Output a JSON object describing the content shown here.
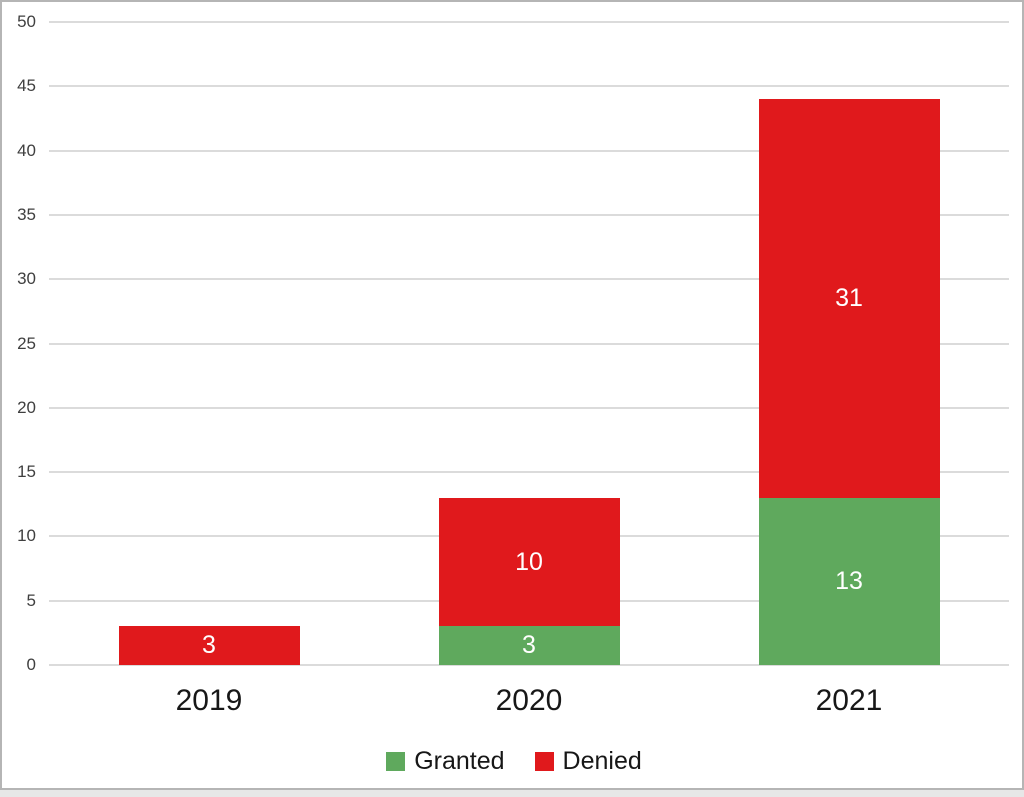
{
  "chart_data": {
    "type": "bar",
    "stacked": true,
    "title": "",
    "xlabel": "",
    "ylabel": "",
    "categories": [
      "2019",
      "2020",
      "2021"
    ],
    "series": [
      {
        "name": "Granted",
        "color": "#5FA95D",
        "values": [
          0,
          3,
          13
        ]
      },
      {
        "name": "Denied",
        "color": "#E0191C",
        "values": [
          3,
          10,
          31
        ]
      }
    ],
    "totals": [
      3,
      13,
      44
    ],
    "ylim": [
      0,
      50
    ],
    "yticks": [
      0,
      5,
      10,
      15,
      20,
      25,
      30,
      35,
      40,
      45,
      50
    ],
    "grid": true,
    "legend_position": "bottom",
    "bar_labels_shown": true,
    "bar_label_color": "#FFFFFF"
  },
  "colors": {
    "granted": "#5FA95D",
    "denied": "#E0191C",
    "gridline": "#DBDBDB",
    "y_tick_text": "#3F3F3F",
    "category_text": "#171717",
    "frame_border": "#B5B5B5",
    "bottom_strip": "#E7E7E7",
    "background": "#FFFFFF"
  }
}
